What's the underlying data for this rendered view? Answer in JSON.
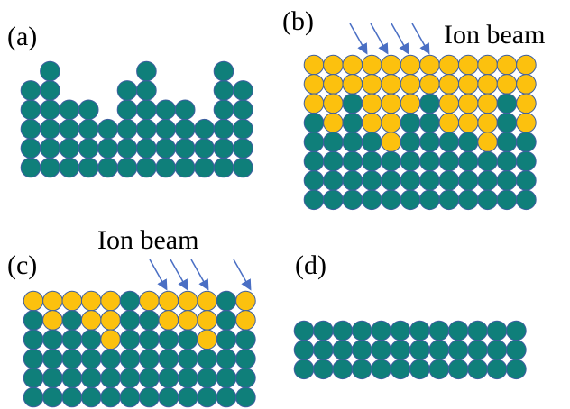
{
  "panels": [
    {
      "label": "(a)"
    },
    {
      "label": "(b)",
      "annotation": "Ion beam"
    },
    {
      "label": "(c)",
      "annotation": "Ion beam"
    },
    {
      "label": "(d)"
    }
  ]
}
